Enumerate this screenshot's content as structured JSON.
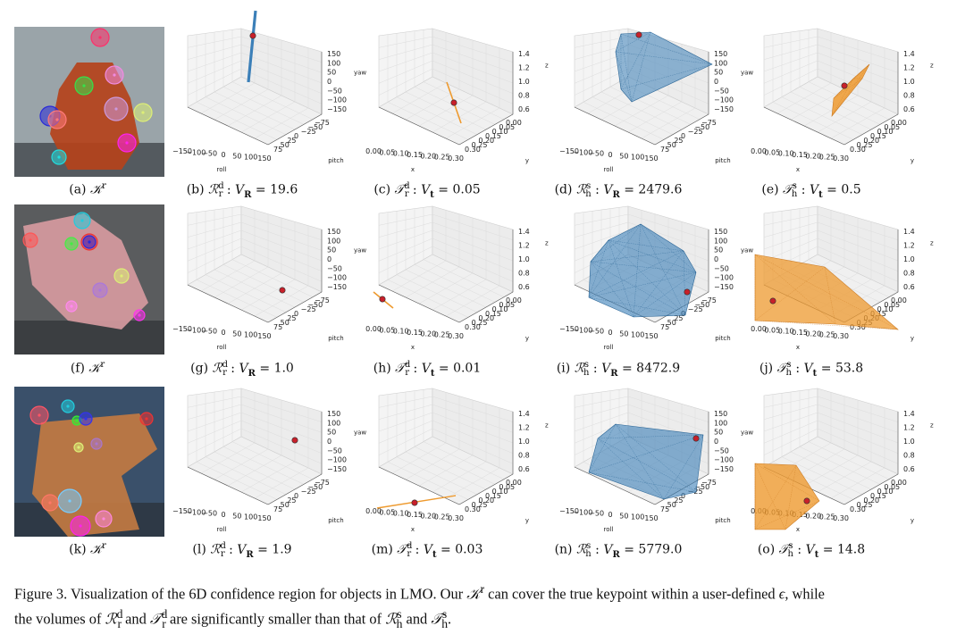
{
  "panels": [
    {
      "row": 0,
      "col": 0,
      "letter": "(a)",
      "kind": "photo",
      "sym": "K",
      "sup": "r",
      "value": "",
      "photo": "ape"
    },
    {
      "row": 0,
      "col": 1,
      "letter": "(b)",
      "kind": "rot",
      "sym": "R",
      "sup": "d",
      "sub": "r",
      "vsub": "R",
      "value": "19.6",
      "shape": "rod-r1"
    },
    {
      "row": 0,
      "col": 2,
      "letter": "(c)",
      "kind": "trans",
      "sym": "T",
      "sup": "d",
      "sub": "r",
      "vsub": "t",
      "value": "0.05",
      "shape": "needle-t1"
    },
    {
      "row": 0,
      "col": 3,
      "letter": "(d)",
      "kind": "rot",
      "sym": "R",
      "sup": "s",
      "sub": "h",
      "vsub": "R",
      "value": "2479.6",
      "shape": "hull-r1"
    },
    {
      "row": 0,
      "col": 4,
      "letter": "(e)",
      "kind": "trans",
      "sym": "T",
      "sup": "s",
      "sub": "h",
      "vsub": "t",
      "value": "0.5",
      "shape": "hull-t1"
    },
    {
      "row": 1,
      "col": 0,
      "letter": "(f)",
      "kind": "photo",
      "sym": "K",
      "sup": "r",
      "value": "",
      "photo": "cat"
    },
    {
      "row": 1,
      "col": 1,
      "letter": "(g)",
      "kind": "rot",
      "sym": "R",
      "sup": "d",
      "sub": "r",
      "vsub": "R",
      "value": "1.0",
      "shape": "dot-r2"
    },
    {
      "row": 1,
      "col": 2,
      "letter": "(h)",
      "kind": "trans",
      "sym": "T",
      "sup": "d",
      "sub": "r",
      "vsub": "t",
      "value": "0.01",
      "shape": "needle-t2"
    },
    {
      "row": 1,
      "col": 3,
      "letter": "(i)",
      "kind": "rot",
      "sym": "R",
      "sup": "s",
      "sub": "h",
      "vsub": "R",
      "value": "8472.9",
      "shape": "hull-r2"
    },
    {
      "row": 1,
      "col": 4,
      "letter": "(j)",
      "kind": "trans",
      "sym": "T",
      "sup": "s",
      "sub": "h",
      "vsub": "t",
      "value": "53.8",
      "shape": "hull-t2"
    },
    {
      "row": 2,
      "col": 0,
      "letter": "(k)",
      "kind": "photo",
      "sym": "K",
      "sup": "r",
      "value": "",
      "photo": "drill"
    },
    {
      "row": 2,
      "col": 1,
      "letter": "(l)",
      "kind": "rot",
      "sym": "R",
      "sup": "d",
      "sub": "r",
      "vsub": "R",
      "value": "1.9",
      "shape": "dot-r3"
    },
    {
      "row": 2,
      "col": 2,
      "letter": "(m)",
      "kind": "trans",
      "sym": "T",
      "sup": "d",
      "sub": "r",
      "vsub": "t",
      "value": "0.03",
      "shape": "needle-t3"
    },
    {
      "row": 2,
      "col": 3,
      "letter": "(n)",
      "kind": "rot",
      "sym": "R",
      "sup": "s",
      "sub": "h",
      "vsub": "R",
      "value": "5779.0",
      "shape": "hull-r3"
    },
    {
      "row": 2,
      "col": 4,
      "letter": "(o)",
      "kind": "trans",
      "sym": "T",
      "sup": "s",
      "sub": "h",
      "vsub": "t",
      "value": "14.8",
      "shape": "hull-t3"
    }
  ],
  "axes": {
    "rot": {
      "z_label": "yaw",
      "z_ticks": [
        "150",
        "100",
        "50",
        "0",
        "−50",
        "−100",
        "−150"
      ],
      "x_label": "roll",
      "x_ticks": [
        "−150",
        "−100",
        "−50",
        "0",
        "50",
        "100",
        "150"
      ],
      "y_label": "pitch",
      "y_ticks": [
        "75",
        "50",
        "25",
        "0",
        "−25",
        "−50",
        "−75"
      ]
    },
    "trans": {
      "z_label": "z",
      "z_ticks": [
        "1.4",
        "1.2",
        "1.0",
        "0.8",
        "0.6"
      ],
      "x_label": "x",
      "x_ticks": [
        "0.00",
        "0.05",
        "0.10",
        "0.15",
        "0.20",
        "0.25",
        "0.30"
      ],
      "y_label": "y",
      "y_ticks": [
        "0.30",
        "0.25",
        "0.20",
        "0.15",
        "0.10",
        "0.05",
        "0.00"
      ]
    }
  },
  "colors": {
    "rotation_region": "#3b7fb8",
    "translation_region": "#ee9a2f",
    "keypoint": "#c8202a"
  },
  "figure_caption": {
    "lead": "Figure 3. Visualization of the 6D confidence region for objects in LMO. Our",
    "line1_rest": "can cover the true keypoint within a user-defined",
    "eps": "ϵ",
    "line1_end": ", while",
    "line2_a": "the volumes of",
    "and": "and",
    "line2_b": "are significantly smaller than that of",
    "period": "."
  }
}
